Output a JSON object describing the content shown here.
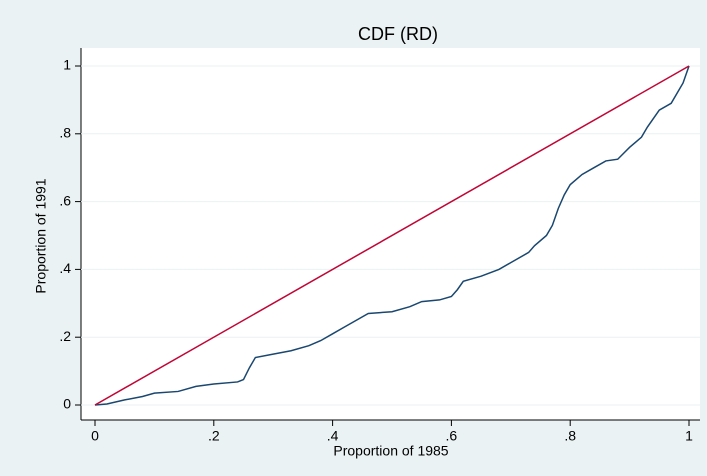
{
  "chart_data": {
    "type": "line",
    "title": "CDF (RD)",
    "x_label": "Proportion of 1985",
    "y_label": "Proportion of 1991",
    "xlim": [
      0,
      1
    ],
    "ylim": [
      0,
      1
    ],
    "xticks": [
      0,
      {
        "value": 0.2,
        "label": ".2"
      },
      {
        "value": 0.4,
        "label": ".4"
      },
      {
        "value": 0.6,
        "label": ".6"
      },
      {
        "value": 0.8,
        "label": ".8"
      },
      1
    ],
    "yticks": [
      0,
      {
        "value": 0.2,
        "label": ".2"
      },
      {
        "value": 0.4,
        "label": ".4"
      },
      {
        "value": 0.6,
        "label": ".6"
      },
      {
        "value": 0.8,
        "label": ".8"
      },
      1
    ],
    "grid": true,
    "series": [
      {
        "color": "#1a476f",
        "x": [
          0,
          0.02,
          0.05,
          0.08,
          0.1,
          0.14,
          0.17,
          0.2,
          0.24,
          0.25,
          0.26,
          0.27,
          0.3,
          0.33,
          0.36,
          0.38,
          0.4,
          0.42,
          0.44,
          0.46,
          0.5,
          0.53,
          0.55,
          0.58,
          0.6,
          0.61,
          0.62,
          0.65,
          0.68,
          0.7,
          0.73,
          0.74,
          0.76,
          0.77,
          0.78,
          0.79,
          0.8,
          0.82,
          0.84,
          0.86,
          0.88,
          0.9,
          0.92,
          0.93,
          0.95,
          0.97,
          0.98,
          0.99,
          1
        ],
        "values": [
          0,
          0.003,
          0.015,
          0.025,
          0.035,
          0.04,
          0.055,
          0.062,
          0.068,
          0.075,
          0.11,
          0.14,
          0.15,
          0.16,
          0.175,
          0.19,
          0.21,
          0.23,
          0.25,
          0.27,
          0.275,
          0.29,
          0.305,
          0.31,
          0.32,
          0.34,
          0.365,
          0.38,
          0.4,
          0.42,
          0.45,
          0.47,
          0.5,
          0.53,
          0.58,
          0.62,
          0.65,
          0.68,
          0.7,
          0.72,
          0.725,
          0.76,
          0.79,
          0.82,
          0.87,
          0.89,
          0.92,
          0.95,
          1
        ]
      },
      {
        "color": "#c10534",
        "x": [
          0,
          1
        ],
        "values": [
          0,
          1
        ]
      }
    ]
  }
}
